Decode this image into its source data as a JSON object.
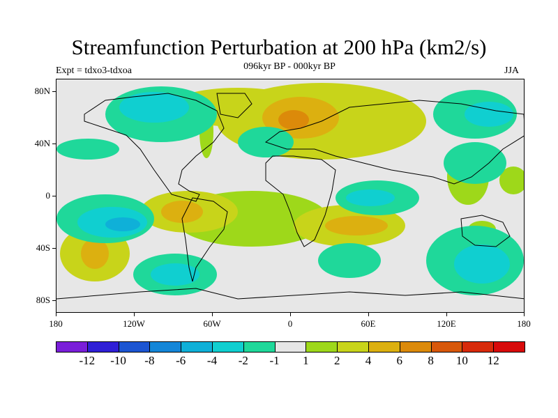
{
  "title": "Streamfunction Perturbation at 200 hPa (km2/s)",
  "subtitle": "096kyr BP - 000kyr BP",
  "left_label": "Expt = tdxo3-tdxoa",
  "right_label": "JJA",
  "y_ticks": [
    "80N",
    "40N",
    "0",
    "40S",
    "80S"
  ],
  "x_ticks": [
    "180",
    "120W",
    "60W",
    "0",
    "60E",
    "120E",
    "180"
  ],
  "colorbar": {
    "labels": [
      "-12",
      "-10",
      "-8",
      "-6",
      "-4",
      "-2",
      "-1",
      "1",
      "2",
      "4",
      "6",
      "8",
      "10",
      "12"
    ],
    "colors": [
      "#7a1ed9",
      "#2f1fd6",
      "#1c55d2",
      "#1486d8",
      "#0fb0d8",
      "#10cfd0",
      "#1fd89a",
      "#e6e6e6",
      "#9ed81a",
      "#c8d41a",
      "#dcb010",
      "#dc8a0a",
      "#d8580a",
      "#d82a0a",
      "#d80a0a"
    ]
  },
  "palette": {
    "neutral": "#e6e6e6",
    "pos1": "#9ed81a",
    "pos2": "#c8d41a",
    "pos3": "#dcb010",
    "pos4": "#dc8a0a",
    "pos5": "#d8580a",
    "neg1": "#1fd89a",
    "neg2": "#10cfd0",
    "neg3": "#0fb0d8",
    "neg4": "#1486d8",
    "neg5": "#1c55d2"
  }
}
